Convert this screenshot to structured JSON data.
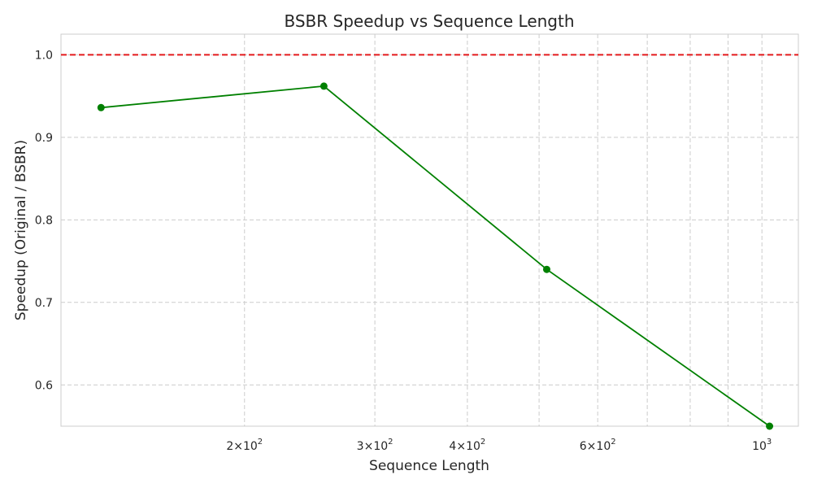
{
  "chart_data": {
    "type": "line",
    "title": "BSBR Speedup vs Sequence Length",
    "xlabel": "Sequence Length",
    "ylabel": "Speedup (Original / BSBR)",
    "xscale": "log",
    "xlim": [
      113,
      1120
    ],
    "ylim": [
      0.55,
      1.025
    ],
    "grid": true,
    "x_ticks": [
      {
        "value": 200,
        "mantissa": "2",
        "exponent": "2"
      },
      {
        "value": 300,
        "mantissa": "3",
        "exponent": "2"
      },
      {
        "value": 400,
        "mantissa": "4",
        "exponent": "2"
      },
      {
        "value": 600,
        "mantissa": "6",
        "exponent": "2"
      },
      {
        "value": 1000,
        "mantissa": "",
        "exponent": "3"
      }
    ],
    "x_minor_gridlines": [
      500,
      700,
      800,
      900
    ],
    "y_ticks": [
      0.6,
      0.7,
      0.8,
      0.9,
      1.0
    ],
    "y_tick_labels": [
      "0.6",
      "0.7",
      "0.8",
      "0.9",
      "1.0"
    ],
    "series": [
      {
        "x": [
          128,
          256,
          512,
          1024
        ],
        "y": [
          0.936,
          0.962,
          0.74,
          0.55
        ],
        "color": "#008000",
        "marker": "circle"
      }
    ],
    "reference_line": {
      "y": 1.0,
      "color": "#e41a1c",
      "style": "dashed"
    }
  }
}
